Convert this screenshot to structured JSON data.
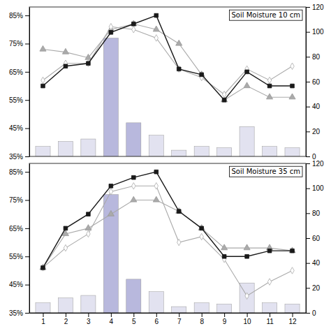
{
  "chart_data": [
    {
      "type": "line",
      "title": "Soil Moisture 10 cm",
      "x": [
        1,
        2,
        3,
        4,
        5,
        6,
        7,
        8,
        9,
        10,
        11,
        12
      ],
      "xlim": [
        0.4,
        12.6
      ],
      "ylim": [
        0.35,
        0.88
      ],
      "yticks": [
        {
          "value": 0.35,
          "label": "35%"
        },
        {
          "value": 0.45,
          "label": "45%"
        },
        {
          "value": 0.55,
          "label": "55%"
        },
        {
          "value": 0.65,
          "label": "65%"
        },
        {
          "value": 0.75,
          "label": "75%"
        },
        {
          "value": 0.85,
          "label": "85%"
        }
      ],
      "y2lim": [
        0,
        120
      ],
      "y2ticks": [
        0,
        20,
        40,
        60,
        80,
        100,
        120
      ],
      "tick_labels": "y",
      "series": [
        {
          "type": "bar",
          "axis": "y2",
          "colors": [
            "#e2e2f0",
            "#e2e2f0",
            "#e2e2f0",
            "#b8b8dd",
            "#b8b8dd",
            "#e2e2f0",
            "#e2e2f0",
            "#e2e2f0",
            "#e2e2f0",
            "#e2e2f0",
            "#e2e2f0",
            "#e2e2f0"
          ],
          "values": [
            8,
            12,
            14,
            95,
            27,
            17,
            5,
            8,
            7,
            24,
            8,
            7
          ]
        },
        {
          "color": "#aaaaaa",
          "marker": "triangle",
          "values": [
            0.73,
            0.72,
            0.7,
            0.8,
            0.82,
            0.8,
            0.75,
            0.64,
            0.55,
            0.6,
            0.56,
            0.56
          ]
        },
        {
          "color": "#aaaaaa",
          "marker": "diamond",
          "values": [
            0.62,
            0.68,
            0.68,
            0.81,
            0.8,
            0.77,
            0.66,
            0.63,
            0.57,
            0.66,
            0.62,
            0.67
          ]
        },
        {
          "color": "#1a1a1a",
          "marker": "square",
          "values": [
            0.6,
            0.67,
            0.68,
            0.79,
            0.82,
            0.85,
            0.66,
            0.64,
            0.55,
            0.65,
            0.6,
            0.6
          ]
        }
      ]
    },
    {
      "type": "line",
      "title": "Soil Moisture 35 cm",
      "x": [
        1,
        2,
        3,
        4,
        5,
        6,
        7,
        8,
        9,
        10,
        11,
        12
      ],
      "xlim": [
        0.4,
        12.6
      ],
      "xticks": [
        1,
        2,
        3,
        4,
        5,
        6,
        7,
        8,
        9,
        10,
        11,
        12
      ],
      "ylim": [
        0.35,
        0.88
      ],
      "yticks": [
        {
          "value": 0.35,
          "label": "35%"
        },
        {
          "value": 0.45,
          "label": "45%"
        },
        {
          "value": 0.55,
          "label": "55%"
        },
        {
          "value": 0.65,
          "label": "65%"
        },
        {
          "value": 0.75,
          "label": "75%"
        },
        {
          "value": 0.85,
          "label": "85%"
        }
      ],
      "y2lim": [
        0,
        120
      ],
      "y2ticks": [
        0,
        20,
        40,
        60,
        80,
        100,
        120
      ],
      "series": [
        {
          "type": "bar",
          "axis": "y2",
          "colors": [
            "#e2e2f0",
            "#e2e2f0",
            "#e2e2f0",
            "#b8b8dd",
            "#b8b8dd",
            "#e2e2f0",
            "#e2e2f0",
            "#e2e2f0",
            "#e2e2f0",
            "#e2e2f0",
            "#e2e2f0",
            "#e2e2f0"
          ],
          "values": [
            8,
            12,
            14,
            95,
            27,
            17,
            5,
            8,
            7,
            24,
            8,
            7
          ]
        },
        {
          "color": "#aaaaaa",
          "marker": "triangle",
          "values": [
            0.51,
            0.63,
            0.65,
            0.7,
            0.75,
            0.75,
            0.71,
            0.65,
            0.58,
            0.58,
            0.58,
            0.57
          ]
        },
        {
          "color": "#aaaaaa",
          "marker": "diamond",
          "values": [
            0.51,
            0.58,
            0.63,
            0.78,
            0.8,
            0.8,
            0.6,
            0.62,
            0.54,
            0.41,
            0.46,
            0.5
          ]
        },
        {
          "color": "#1a1a1a",
          "marker": "square",
          "values": [
            0.51,
            0.65,
            0.7,
            0.8,
            0.83,
            0.85,
            0.71,
            0.65,
            0.55,
            0.55,
            0.57,
            0.57
          ]
        }
      ]
    }
  ]
}
